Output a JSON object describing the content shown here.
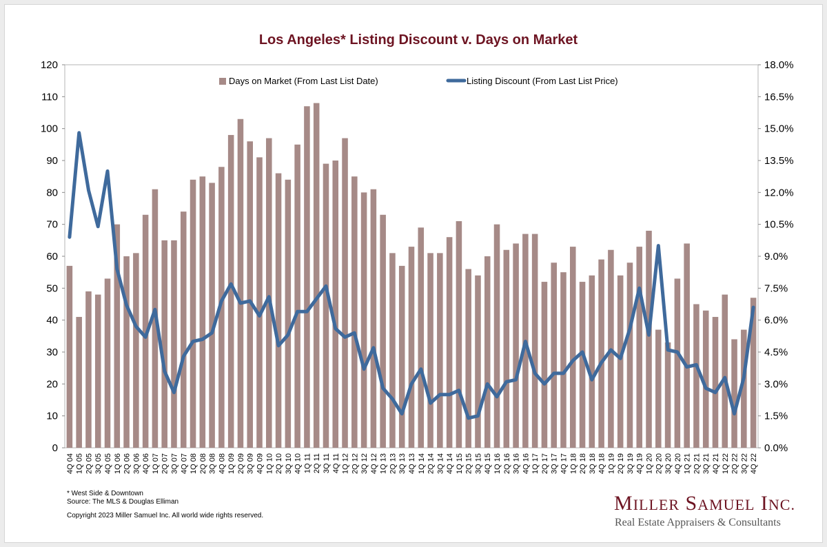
{
  "chart_data": {
    "type": "bar",
    "title": "Los Angeles* Listing Discount v. Days on Market",
    "categories": [
      "4Q 04",
      "1Q 05",
      "2Q 05",
      "3Q 05",
      "4Q 05",
      "1Q 06",
      "2Q 06",
      "3Q 06",
      "4Q 06",
      "1Q 07",
      "2Q 07",
      "3Q 07",
      "4Q 07",
      "1Q 08",
      "2Q 08",
      "3Q 08",
      "4Q 08",
      "1Q 09",
      "2Q 09",
      "3Q 09",
      "4Q 09",
      "1Q 10",
      "2Q 10",
      "3Q 10",
      "4Q 10",
      "1Q 11",
      "2Q 11",
      "3Q 11",
      "4Q 11",
      "1Q 12",
      "2Q 12",
      "3Q 12",
      "4Q 12",
      "1Q 13",
      "2Q 13",
      "3Q 13",
      "4Q 13",
      "1Q 14",
      "2Q 14",
      "3Q 14",
      "4Q 14",
      "1Q 15",
      "2Q 15",
      "3Q 15",
      "4Q 15",
      "1Q 16",
      "2Q 16",
      "3Q 16",
      "4Q 16",
      "1Q 17",
      "2Q 17",
      "3Q 17",
      "4Q 17",
      "1Q 18",
      "2Q 18",
      "3Q 18",
      "4Q 18",
      "1Q 19",
      "2Q 19",
      "3Q 19",
      "4Q 19",
      "1Q 20",
      "2Q 20",
      "3Q 20",
      "4Q 20",
      "1Q 21",
      "2Q 21",
      "3Q 21",
      "4Q 21",
      "1Q 22",
      "2Q 22",
      "3Q 22",
      "4Q 22"
    ],
    "series": [
      {
        "name": "Days on Market (From Last List Date)",
        "type": "bar",
        "axis": "left",
        "color": "#a68a87",
        "values": [
          57,
          41,
          49,
          48,
          53,
          70,
          60,
          61,
          73,
          81,
          65,
          65,
          74,
          84,
          85,
          83,
          88,
          98,
          103,
          96,
          91,
          97,
          86,
          84,
          95,
          107,
          108,
          89,
          90,
          97,
          85,
          80,
          81,
          73,
          61,
          57,
          63,
          69,
          61,
          61,
          66,
          71,
          56,
          54,
          60,
          70,
          62,
          64,
          67,
          67,
          52,
          58,
          55,
          63,
          52,
          54,
          59,
          62,
          54,
          58,
          63,
          68,
          37,
          33,
          53,
          64,
          45,
          43,
          41,
          48,
          34,
          37,
          47
        ]
      },
      {
        "name": "Listing Discount (From Last List Price)",
        "type": "line",
        "axis": "right",
        "color": "#3f6a9c",
        "values": [
          9.9,
          14.8,
          12.1,
          10.4,
          13.0,
          8.4,
          6.7,
          5.7,
          5.2,
          6.5,
          3.6,
          2.6,
          4.3,
          5.0,
          5.1,
          5.4,
          6.9,
          7.7,
          6.8,
          6.9,
          6.2,
          7.1,
          4.8,
          5.3,
          6.4,
          6.4,
          7.0,
          7.6,
          5.6,
          5.2,
          5.4,
          3.7,
          4.7,
          2.8,
          2.3,
          1.6,
          3.0,
          3.7,
          2.1,
          2.5,
          2.5,
          2.7,
          1.4,
          1.5,
          3.0,
          2.4,
          3.1,
          3.2,
          5.0,
          3.5,
          3.0,
          3.5,
          3.5,
          4.1,
          4.5,
          3.2,
          4.0,
          4.6,
          4.2,
          5.6,
          7.5,
          5.3,
          9.5,
          4.6,
          4.5,
          3.8,
          3.9,
          2.8,
          2.6,
          3.3,
          1.6,
          3.3,
          6.6
        ]
      }
    ],
    "y_left": {
      "min": 0,
      "max": 120,
      "step": 10,
      "ticks": [
        "0",
        "10",
        "20",
        "30",
        "40",
        "50",
        "60",
        "70",
        "80",
        "90",
        "100",
        "110",
        "120"
      ]
    },
    "y_right": {
      "min": 0,
      "max": 18,
      "step": 1.5,
      "ticks": [
        "0.0%",
        "1.5%",
        "3.0%",
        "4.5%",
        "6.0%",
        "7.5%",
        "9.0%",
        "10.5%",
        "12.0%",
        "13.5%",
        "15.0%",
        "16.5%",
        "18.0%"
      ]
    },
    "grid": false,
    "legend_position": "top-center",
    "title_color": "#6d1422"
  },
  "footnotes": {
    "note": "* West Side & Downtown",
    "source": "Source: The MLS & Douglas Elliman",
    "copyright": "Copyright 2023 Miller Samuel Inc.  All world wide rights reserved."
  },
  "logo": {
    "name": "Miller Samuel Inc.",
    "tagline": "Real Estate Appraisers & Consultants"
  }
}
